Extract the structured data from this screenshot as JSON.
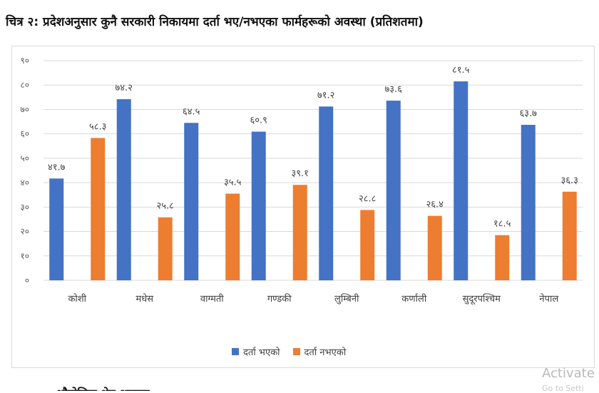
{
  "figure_title": "चित्र २: प्रदेशअनुसार कुनै सरकारी निकायमा दर्ता भए/नभएका फार्महरूको अवस्था (प्रतिशतमा)",
  "chart_data": {
    "type": "bar",
    "categories": [
      "कोशी",
      "मधेस",
      "वाग्मती",
      "गण्डकी",
      "लुम्बिनी",
      "कर्णाली",
      "सुदूरपश्चिम",
      "नेपाल"
    ],
    "series": [
      {
        "name": "दर्ता भएको",
        "color": "#4472c4",
        "values": [
          41.7,
          74.2,
          64.5,
          60.9,
          71.2,
          73.6,
          81.5,
          63.7
        ],
        "labels": [
          "४१.७",
          "७४.२",
          "६४.५",
          "६०.९",
          "७१.२",
          "७३.६",
          "८१.५",
          "६३.७"
        ]
      },
      {
        "name": "दर्ता नभएको",
        "color": "#ed7d31",
        "values": [
          58.3,
          25.8,
          35.5,
          39.1,
          28.8,
          26.4,
          18.5,
          36.3
        ],
        "labels": [
          "५८.३",
          "२५.८",
          "३५.५",
          "३९.१",
          "२८.८",
          "२६.४",
          "१८.५",
          "३६.३"
        ]
      }
    ],
    "ylim": [
      0,
      90
    ],
    "yticks": [
      0,
      10,
      20,
      30,
      40,
      50,
      60,
      70,
      80,
      90
    ],
    "ytick_labels": [
      "०",
      "१०",
      "२०",
      "३०",
      "४०",
      "५०",
      "६०",
      "७०",
      "८०",
      "९०"
    ],
    "grid": true,
    "legend": "bottom"
  },
  "watermark": {
    "text": "Activate",
    "subtext": "Go to Setti"
  },
  "bottom_fragment": "भौगोलिक क्षेत्र अनुसार"
}
